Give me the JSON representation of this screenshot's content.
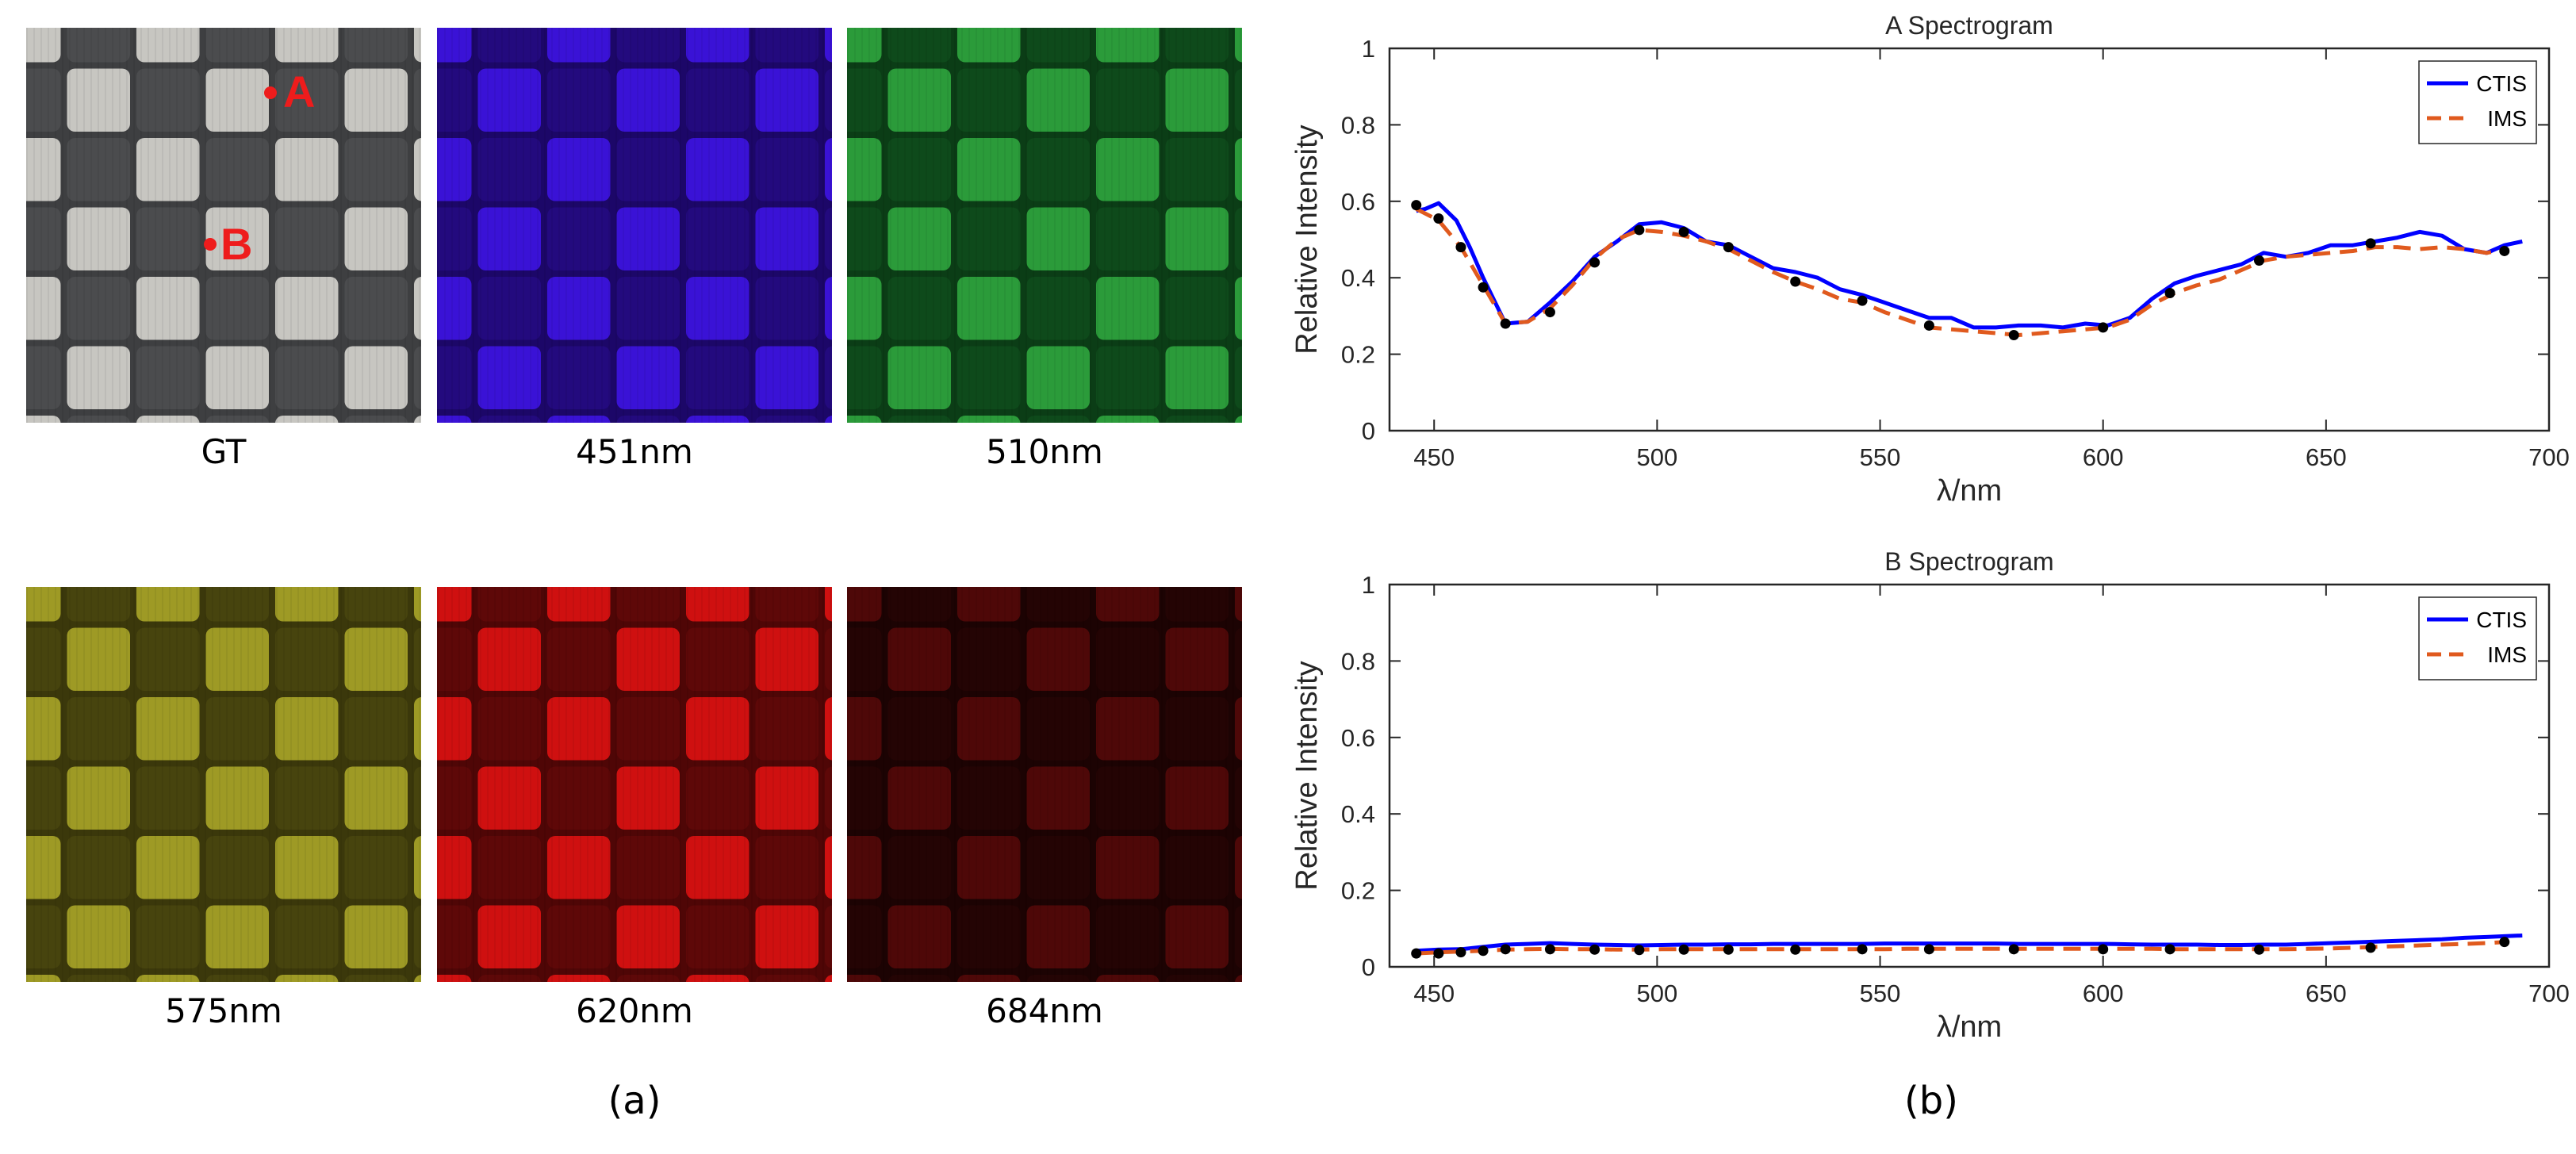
{
  "panel_a": {
    "label": "(a)",
    "tiles": [
      {
        "label": "GT",
        "light": "#c7c6c1",
        "dark": "#4b4c4e",
        "gap": "#3e3f41"
      },
      {
        "label": "451nm",
        "light": "#3a12d6",
        "dark": "#230a7e",
        "gap": "#1c0768"
      },
      {
        "label": "510nm",
        "light": "#2b9b3a",
        "dark": "#0e4a1b",
        "gap": "#0b3d16"
      },
      {
        "label": "575nm",
        "light": "#9e9a25",
        "dark": "#47440e",
        "gap": "#3b380b"
      },
      {
        "label": "620nm",
        "light": "#cf1010",
        "dark": "#5e0808",
        "gap": "#4f0606"
      },
      {
        "label": "684nm",
        "light": "#4e0808",
        "dark": "#240404",
        "gap": "#1c0303"
      }
    ],
    "markers": [
      {
        "label": "A",
        "color": "#ee1c1c"
      },
      {
        "label": "B",
        "color": "#ee1c1c"
      }
    ]
  },
  "panel_b": {
    "label": "(b)"
  },
  "chart_data": [
    {
      "type": "line",
      "title": "A Spectrogram",
      "xlabel": "λ/nm",
      "ylabel": "Relative Intensity",
      "xlim": [
        440,
        700
      ],
      "ylim": [
        0,
        1
      ],
      "xticks": [
        450,
        500,
        550,
        600,
        650,
        700
      ],
      "yticks": [
        0,
        0.2,
        0.4,
        0.6,
        0.8,
        1
      ],
      "legend_position": "top-right",
      "series": [
        {
          "name": "CTIS",
          "color": "#0000ff",
          "style": "solid",
          "x": [
            446,
            448,
            451,
            455,
            458,
            461,
            466,
            471,
            476,
            481,
            486,
            491,
            496,
            501,
            506,
            511,
            516,
            521,
            526,
            531,
            536,
            541,
            546,
            551,
            556,
            561,
            566,
            571,
            576,
            581,
            586,
            591,
            596,
            601,
            606,
            611,
            616,
            621,
            626,
            631,
            636,
            641,
            646,
            651,
            656,
            661,
            666,
            671,
            676,
            681,
            686,
            690,
            694
          ],
          "y": [
            0.575,
            0.58,
            0.595,
            0.55,
            0.48,
            0.4,
            0.28,
            0.285,
            0.335,
            0.39,
            0.455,
            0.495,
            0.54,
            0.545,
            0.53,
            0.495,
            0.485,
            0.455,
            0.425,
            0.415,
            0.4,
            0.37,
            0.355,
            0.335,
            0.315,
            0.295,
            0.295,
            0.27,
            0.27,
            0.275,
            0.275,
            0.27,
            0.28,
            0.275,
            0.295,
            0.345,
            0.385,
            0.405,
            0.42,
            0.435,
            0.465,
            0.455,
            0.465,
            0.485,
            0.485,
            0.495,
            0.505,
            0.52,
            0.51,
            0.475,
            0.465,
            0.485,
            0.495
          ]
        },
        {
          "name": "IMS",
          "color": "#e05a1e",
          "style": "dashed",
          "x": [
            446,
            451,
            456,
            461,
            466,
            471,
            476,
            481,
            486,
            491,
            496,
            501,
            506,
            511,
            516,
            521,
            526,
            531,
            536,
            541,
            546,
            551,
            556,
            561,
            566,
            571,
            576,
            581,
            586,
            591,
            596,
            601,
            606,
            611,
            616,
            621,
            626,
            631,
            636,
            641,
            646,
            651,
            656,
            661,
            666,
            671,
            676,
            681,
            686,
            690
          ],
          "y": [
            0.58,
            0.55,
            0.48,
            0.38,
            0.28,
            0.285,
            0.32,
            0.38,
            0.45,
            0.5,
            0.525,
            0.52,
            0.51,
            0.495,
            0.475,
            0.445,
            0.415,
            0.39,
            0.37,
            0.345,
            0.335,
            0.31,
            0.29,
            0.27,
            0.265,
            0.26,
            0.255,
            0.25,
            0.255,
            0.26,
            0.265,
            0.27,
            0.29,
            0.33,
            0.36,
            0.38,
            0.395,
            0.42,
            0.445,
            0.455,
            0.46,
            0.465,
            0.47,
            0.48,
            0.48,
            0.475,
            0.48,
            0.475,
            0.465,
            0.475
          ]
        },
        {
          "name": "points",
          "color": "#000000",
          "style": "markers",
          "x": [
            446,
            451,
            456,
            461,
            466,
            476,
            486,
            496,
            506,
            516,
            531,
            546,
            561,
            580,
            600,
            615,
            635,
            660,
            690
          ],
          "y": [
            0.59,
            0.555,
            0.48,
            0.375,
            0.28,
            0.31,
            0.44,
            0.525,
            0.52,
            0.48,
            0.39,
            0.34,
            0.275,
            0.25,
            0.27,
            0.36,
            0.445,
            0.49,
            0.47
          ]
        }
      ]
    },
    {
      "type": "line",
      "title": "B Spectrogram",
      "xlabel": "λ/nm",
      "ylabel": "Relative Intensity",
      "xlim": [
        440,
        700
      ],
      "ylim": [
        0,
        1
      ],
      "xticks": [
        450,
        500,
        550,
        600,
        650,
        700
      ],
      "yticks": [
        0,
        0.2,
        0.4,
        0.6,
        0.8,
        1
      ],
      "legend_position": "top-right",
      "series": [
        {
          "name": "CTIS",
          "color": "#0000ff",
          "style": "solid",
          "x": [
            446,
            451,
            456,
            461,
            466,
            471,
            476,
            481,
            486,
            491,
            496,
            501,
            506,
            511,
            516,
            521,
            526,
            531,
            536,
            541,
            546,
            551,
            556,
            561,
            566,
            571,
            576,
            581,
            586,
            591,
            596,
            601,
            606,
            611,
            616,
            621,
            626,
            631,
            636,
            641,
            646,
            651,
            656,
            661,
            666,
            671,
            676,
            681,
            686,
            690,
            694
          ],
          "y": [
            0.042,
            0.045,
            0.046,
            0.052,
            0.058,
            0.06,
            0.062,
            0.06,
            0.058,
            0.057,
            0.056,
            0.057,
            0.058,
            0.058,
            0.059,
            0.059,
            0.06,
            0.06,
            0.06,
            0.06,
            0.06,
            0.061,
            0.061,
            0.061,
            0.061,
            0.061,
            0.061,
            0.06,
            0.06,
            0.06,
            0.06,
            0.06,
            0.059,
            0.058,
            0.058,
            0.058,
            0.057,
            0.057,
            0.058,
            0.058,
            0.06,
            0.062,
            0.064,
            0.066,
            0.068,
            0.07,
            0.072,
            0.076,
            0.078,
            0.08,
            0.082
          ]
        },
        {
          "name": "IMS",
          "color": "#e05a1e",
          "style": "dashed",
          "x": [
            446,
            451,
            456,
            461,
            466,
            471,
            476,
            481,
            486,
            491,
            496,
            501,
            506,
            511,
            516,
            521,
            526,
            531,
            536,
            541,
            546,
            551,
            556,
            561,
            566,
            571,
            576,
            581,
            586,
            591,
            596,
            601,
            606,
            611,
            616,
            621,
            626,
            631,
            636,
            641,
            646,
            651,
            656,
            661,
            666,
            671,
            676,
            681,
            686,
            690
          ],
          "y": [
            0.035,
            0.038,
            0.04,
            0.042,
            0.045,
            0.046,
            0.047,
            0.046,
            0.046,
            0.045,
            0.045,
            0.046,
            0.046,
            0.046,
            0.046,
            0.046,
            0.046,
            0.046,
            0.046,
            0.046,
            0.046,
            0.046,
            0.047,
            0.047,
            0.047,
            0.047,
            0.047,
            0.047,
            0.047,
            0.047,
            0.047,
            0.047,
            0.047,
            0.047,
            0.046,
            0.046,
            0.046,
            0.046,
            0.046,
            0.046,
            0.047,
            0.048,
            0.05,
            0.052,
            0.054,
            0.056,
            0.058,
            0.06,
            0.062,
            0.065
          ]
        },
        {
          "name": "points",
          "color": "#000000",
          "style": "markers",
          "x": [
            446,
            451,
            456,
            461,
            466,
            476,
            486,
            496,
            506,
            516,
            531,
            546,
            561,
            580,
            600,
            615,
            635,
            660,
            690
          ],
          "y": [
            0.035,
            0.035,
            0.038,
            0.042,
            0.046,
            0.046,
            0.045,
            0.044,
            0.045,
            0.045,
            0.045,
            0.046,
            0.046,
            0.046,
            0.046,
            0.046,
            0.045,
            0.05,
            0.065
          ]
        }
      ]
    }
  ]
}
